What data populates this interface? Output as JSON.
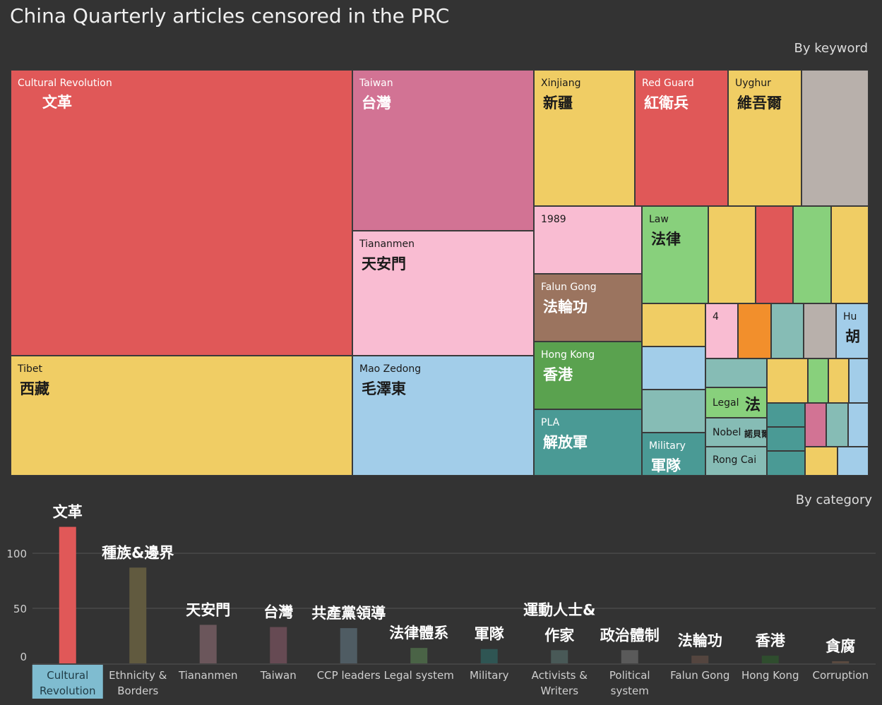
{
  "title": "China Quarterly articles censored in the PRC",
  "treemap": {
    "heading": "By keyword",
    "tiles": [
      {
        "en": "Cultural Revolution",
        "zh": "文革",
        "color": "#e05858",
        "light": true
      },
      {
        "en": "Tibet",
        "zh": "西藏",
        "color": "#f0cd64",
        "light": false
      },
      {
        "en": "Taiwan",
        "zh": "台灣",
        "color": "#d27394",
        "light": true
      },
      {
        "en": "Tiananmen",
        "zh": "天安門",
        "color": "#f9bcd2",
        "light": false
      },
      {
        "en": "Mao Zedong",
        "zh": "毛澤東",
        "color": "#a2cde9",
        "light": false
      },
      {
        "en": "Xinjiang",
        "zh": "新疆",
        "color": "#f0cd64",
        "light": false
      },
      {
        "en": "Red Guard",
        "zh": "紅衛兵",
        "color": "#e05858",
        "light": true
      },
      {
        "en": "Uyghur",
        "zh": "維吾爾",
        "color": "#f0cd64",
        "light": false
      },
      {
        "en": "",
        "zh": "",
        "color": "#b8b0ab",
        "light": false
      },
      {
        "en": "1989",
        "zh": "",
        "color": "#f9bcd2",
        "light": false
      },
      {
        "en": "Falun Gong",
        "zh": "法輪功",
        "color": "#9b745f",
        "light": true
      },
      {
        "en": "Hong Kong",
        "zh": "香港",
        "color": "#5aa24f",
        "light": true
      },
      {
        "en": "PLA",
        "zh": "解放軍",
        "color": "#4a9a95",
        "light": true
      },
      {
        "en": "Law",
        "zh": "法律",
        "color": "#88d07c",
        "light": false
      },
      {
        "en": "",
        "zh": "",
        "color": "#f0cd64",
        "light": false
      },
      {
        "en": "",
        "zh": "",
        "color": "#e05858",
        "light": false
      },
      {
        "en": "",
        "zh": "",
        "color": "#88d07c",
        "light": false
      },
      {
        "en": "",
        "zh": "",
        "color": "#f0cd64",
        "light": false
      },
      {
        "en": "",
        "zh": "",
        "color": "#f0cd64",
        "light": false
      },
      {
        "en": "4",
        "zh": "",
        "color": "#f9bcd2",
        "light": false
      },
      {
        "en": "",
        "zh": "",
        "color": "#f28f2c",
        "light": false
      },
      {
        "en": "",
        "zh": "",
        "color": "#86bcb5",
        "light": false
      },
      {
        "en": "",
        "zh": "",
        "color": "#b8b0ab",
        "light": false
      },
      {
        "en": "Hu",
        "zh": "胡",
        "color": "#a2cde9",
        "light": false
      },
      {
        "en": "",
        "zh": "",
        "color": "#a2cde9",
        "light": false
      },
      {
        "en": "",
        "zh": "",
        "color": "#86bcb5",
        "light": false
      },
      {
        "en": "Military",
        "zh": "軍隊",
        "color": "#4a9a95",
        "light": true
      },
      {
        "en": "",
        "zh": "",
        "color": "#86bcb5",
        "light": false
      },
      {
        "en": "Legal",
        "zh": "法",
        "color": "#88d07c",
        "light": false
      },
      {
        "en": "Nobel",
        "zh": "諾貝爾",
        "color": "#86bcb5",
        "light": false
      },
      {
        "en": "Rong Cai",
        "zh": "",
        "color": "#86bcb5",
        "light": false
      },
      {
        "en": "",
        "zh": "",
        "color": "#f0cd64",
        "light": false
      },
      {
        "en": "",
        "zh": "",
        "color": "#88d07c",
        "light": false
      },
      {
        "en": "",
        "zh": "",
        "color": "#f0cd64",
        "light": false
      },
      {
        "en": "",
        "zh": "",
        "color": "#a2cde9",
        "light": false
      },
      {
        "en": "",
        "zh": "",
        "color": "#4a9a95",
        "light": false
      },
      {
        "en": "",
        "zh": "",
        "color": "#4a9a95",
        "light": false
      },
      {
        "en": "",
        "zh": "",
        "color": "#4a9a95",
        "light": false
      },
      {
        "en": "",
        "zh": "",
        "color": "#d27394",
        "light": false
      },
      {
        "en": "",
        "zh": "",
        "color": "#86bcb5",
        "light": false
      },
      {
        "en": "",
        "zh": "",
        "color": "#a2cde9",
        "light": false
      },
      {
        "en": "",
        "zh": "",
        "color": "#f0cd64",
        "light": false
      },
      {
        "en": "",
        "zh": "",
        "color": "#a2cde9",
        "light": false
      }
    ]
  },
  "chart_data": {
    "type": "bar",
    "title": "By category",
    "categories": [
      {
        "en": "Cultural Revolution",
        "zh": "文革",
        "value": 124,
        "color": "#e05858",
        "selected": true
      },
      {
        "en": "Ethnicity & Borders",
        "zh": "種族&邊界",
        "value": 87,
        "color": "#615a3f",
        "selected": false
      },
      {
        "en": "Tiananmen",
        "zh": "天安門",
        "value": 35,
        "color": "#6b565b",
        "selected": false
      },
      {
        "en": "Taiwan",
        "zh": "台灣",
        "value": 33,
        "color": "#664a53",
        "selected": false
      },
      {
        "en": "CCP leaders",
        "zh": "共產黨領導",
        "value": 32,
        "color": "#4f5c63",
        "selected": false
      },
      {
        "en": "Legal system",
        "zh": "法律體系",
        "value": 14,
        "color": "#4a6346",
        "selected": false
      },
      {
        "en": "Military",
        "zh": "軍隊",
        "value": 13,
        "color": "#2f5553",
        "selected": false
      },
      {
        "en": "Activists & Writers",
        "zh": "運動人士&作家",
        "value": 12,
        "color": "#495957",
        "selected": false
      },
      {
        "en": "Political system",
        "zh": "政治體制",
        "value": 12,
        "color": "#5a5a5a",
        "selected": false
      },
      {
        "en": "Falun Gong",
        "zh": "法輪功",
        "value": 7,
        "color": "#54453f",
        "selected": false
      },
      {
        "en": "Hong Kong",
        "zh": "香港",
        "value": 7,
        "color": "#2f4d2e",
        "selected": false
      },
      {
        "en": "Corruption",
        "zh": "貪腐",
        "value": 2,
        "color": "#5a4a40",
        "selected": false
      }
    ],
    "y_ticks": [
      "0",
      "50",
      "100"
    ],
    "ylim": [
      0,
      160
    ],
    "grid": true
  }
}
